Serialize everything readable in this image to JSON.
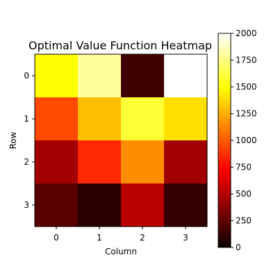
{
  "chart_data": {
    "type": "heatmap",
    "title": "Optimal Value Function Heatmap",
    "xlabel": "Column",
    "ylabel": "Row",
    "x_categories": [
      "0",
      "1",
      "2",
      "3"
    ],
    "y_categories": [
      "0",
      "1",
      "2",
      "3"
    ],
    "values": [
      [
        1500,
        1800,
        100,
        2000
      ],
      [
        950,
        1300,
        1600,
        1400
      ],
      [
        380,
        850,
        1150,
        380
      ],
      [
        170,
        40,
        440,
        60
      ]
    ],
    "colormap": "hot",
    "color_range": [
      0,
      2000
    ],
    "colorbar_ticks": [
      "0",
      "250",
      "500",
      "750",
      "1000",
      "1250",
      "1500",
      "1750",
      "2000"
    ],
    "colorbar_tick_values": [
      0,
      250,
      500,
      750,
      1000,
      1250,
      1500,
      1750,
      2000
    ]
  }
}
